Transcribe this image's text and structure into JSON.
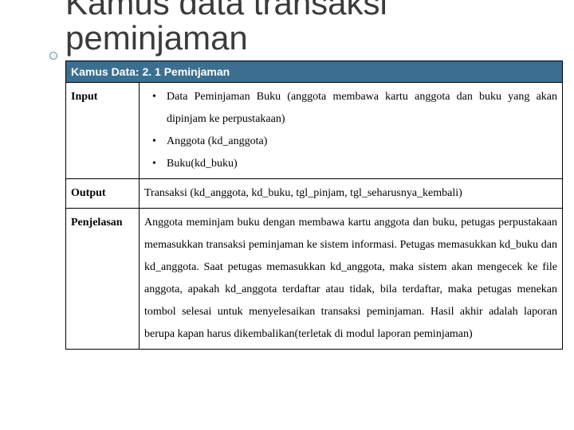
{
  "slide": {
    "title_line1": "Kamus data transaksi",
    "title_line2": "peminjaman"
  },
  "table": {
    "header": "Kamus Data: 2. 1 Peminjaman",
    "header_bg": "#3b6e8f",
    "header_fg": "#ffffff",
    "border_color": "#000000",
    "rows": {
      "input": {
        "label": "Input",
        "items": [
          "Data Peminjaman Buku (anggota membawa kartu anggota dan buku yang akan dipinjam ke perpustakaan)",
          "Anggota (kd_anggota)",
          "Buku(kd_buku)"
        ]
      },
      "output": {
        "label": "Output",
        "text": "Transaksi (kd_anggota, kd_buku, tgl_pinjam, tgl_seharusnya_kembali)"
      },
      "penjelasan": {
        "label": "Penjelasan",
        "text": "Anggota meminjam buku dengan membawa kartu anggota dan buku, petugas perpustakaan memasukkan transaksi peminjaman ke sistem informasi. Petugas memasukkan kd_buku dan kd_anggota. Saat petugas memasukkan kd_anggota, maka sistem akan mengecek ke file anggota, apakah kd_anggota terdaftar atau tidak, bila terdaftar, maka petugas menekan tombol selesai untuk menyelesaikan transaksi peminjaman. Hasil akhir adalah laporan berupa kapan harus dikembalikan(terletak di modul laporan peminjaman)"
      }
    }
  },
  "typography": {
    "title_fontsize": 42,
    "body_fontsize": 14,
    "label_fontsize": 13,
    "body_font": "Times New Roman",
    "title_font": "Arial"
  },
  "colors": {
    "page_bg": "#ffffff",
    "text": "#000000",
    "title_text": "#3b3b3b"
  }
}
